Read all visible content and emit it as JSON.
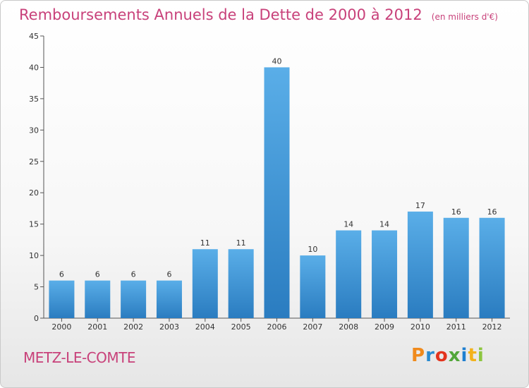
{
  "header": {
    "title": "Remboursements Annuels de la Dette de 2000 à 2012",
    "unit": "(en milliers d'€)"
  },
  "footer": {
    "commune": "METZ-LE-COMTE",
    "brand": "Proxiti",
    "brand_colors": [
      "#f08a1c",
      "#2a8bd0",
      "#e3341e",
      "#52a63a",
      "#1f7fd0",
      "#f3b21c",
      "#8dc63f"
    ]
  },
  "chart_data": {
    "type": "bar",
    "categories": [
      "2000",
      "2001",
      "2002",
      "2003",
      "2004",
      "2005",
      "2006",
      "2007",
      "2008",
      "2009",
      "2010",
      "2011",
      "2012"
    ],
    "values": [
      6,
      6,
      6,
      6,
      11,
      11,
      40,
      10,
      14,
      14,
      17,
      16,
      16
    ],
    "title": "Remboursements Annuels de la Dette de 2000 à 2012",
    "ylim": [
      0,
      45
    ],
    "yticks": [
      0,
      5,
      10,
      15,
      20,
      25,
      30,
      35,
      40,
      45
    ],
    "grid": false,
    "bar_color_top": "#5aaee8",
    "bar_color_bottom": "#2a7cc0"
  }
}
